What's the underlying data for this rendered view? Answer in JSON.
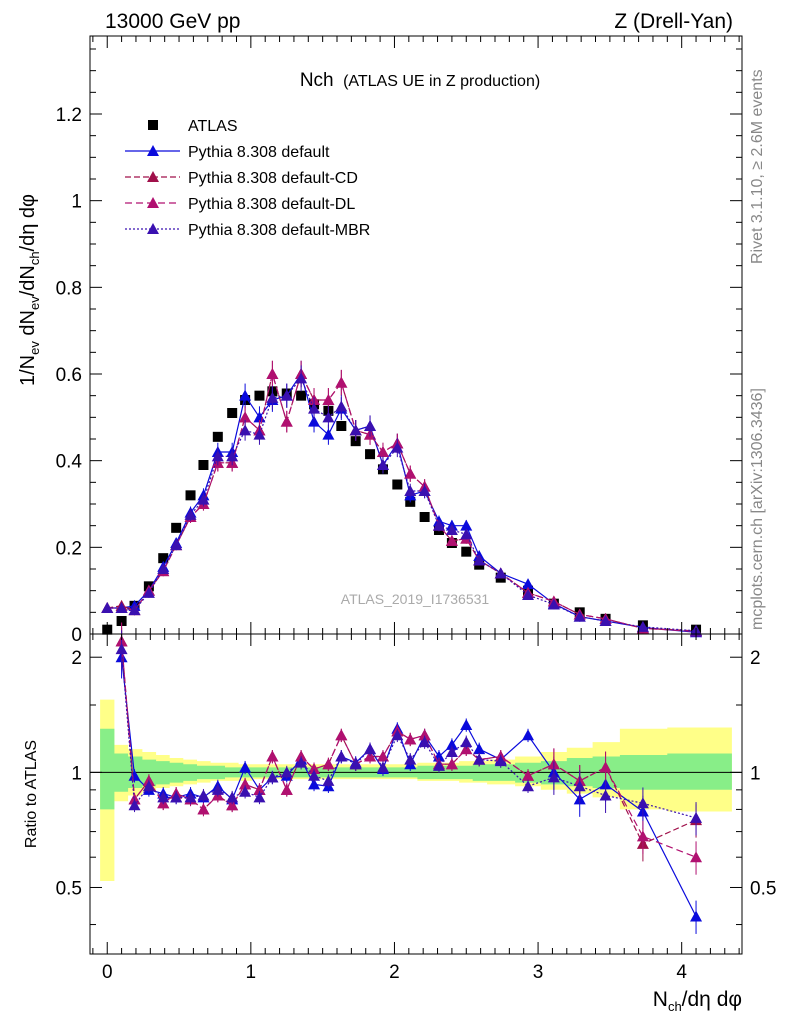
{
  "header": {
    "left": "13000 GeV pp",
    "right": "Z (Drell-Yan)"
  },
  "side_labels": {
    "rivet": "Rivet 3.1.10, ≥ 2.6M events",
    "mcplots": "mcplots.cern.ch [arXiv:1306.3436]"
  },
  "title": {
    "main": "Nch",
    "sub": "(ATLAS UE in Z production)"
  },
  "watermark": "ATLAS_2019_I1736531",
  "colors": {
    "atlas": "#000000",
    "default": "#0a0adc",
    "cd": "#a0104a",
    "dl": "#b01070",
    "mbr": "#3a10b0",
    "band_yellow": "#ffff88",
    "band_green": "#88ee88"
  },
  "chart_data": [
    {
      "type": "scatter",
      "panel": "main",
      "title": "Nch (ATLAS UE in Z production)",
      "xlabel": "N_ch/dη dφ",
      "ylabel": "1/N_ev dN_ev/dN_ch/dη dφ",
      "xlim": [
        -0.12,
        4.42
      ],
      "ylim": [
        0,
        1.38
      ],
      "xticks": [
        "0",
        "1",
        "2",
        "3",
        "4"
      ],
      "yticks": [
        "0",
        "0.2",
        "0.4",
        "0.6",
        "0.8",
        "1",
        "1.2"
      ],
      "legend": [
        "ATLAS",
        "Pythia 8.308 default",
        "Pythia 8.308 default-CD",
        "Pythia 8.308 default-DL",
        "Pythia 8.308 default-MBR"
      ],
      "x": [
        0.0,
        0.1,
        0.19,
        0.29,
        0.39,
        0.48,
        0.58,
        0.67,
        0.77,
        0.87,
        0.96,
        1.06,
        1.15,
        1.25,
        1.35,
        1.44,
        1.54,
        1.63,
        1.73,
        1.83,
        1.92,
        2.02,
        2.11,
        2.21,
        2.31,
        2.4,
        2.5,
        2.59,
        2.74,
        2.93,
        3.11,
        3.29,
        3.47,
        3.73,
        4.1
      ],
      "series": [
        {
          "name": "ATLAS",
          "values": [
            0.01,
            0.03,
            0.065,
            0.11,
            0.175,
            0.245,
            0.32,
            0.39,
            0.455,
            0.51,
            0.54,
            0.55,
            0.56,
            0.555,
            0.55,
            0.53,
            0.515,
            0.48,
            0.445,
            0.415,
            0.38,
            0.345,
            0.305,
            0.27,
            0.24,
            0.21,
            0.19,
            0.16,
            0.13,
            0.1,
            0.07,
            0.05,
            0.035,
            0.02,
            0.01
          ]
        },
        {
          "name": "Pythia 8.308 default",
          "values": [
            0.06,
            0.06,
            0.065,
            0.1,
            0.155,
            0.21,
            0.28,
            0.32,
            0.42,
            0.42,
            0.55,
            0.5,
            0.54,
            0.55,
            0.6,
            0.49,
            0.46,
            0.52,
            0.47,
            0.48,
            0.39,
            0.44,
            0.32,
            0.33,
            0.26,
            0.25,
            0.25,
            0.18,
            0.14,
            0.115,
            0.07,
            0.04,
            0.03,
            0.015,
            0.004
          ]
        },
        {
          "name": "Pythia 8.308 default-CD",
          "values": [
            0.06,
            0.065,
            0.055,
            0.1,
            0.145,
            0.205,
            0.27,
            0.3,
            0.395,
            0.395,
            0.5,
            0.47,
            0.6,
            0.49,
            0.6,
            0.54,
            0.54,
            0.58,
            0.47,
            0.46,
            0.42,
            0.44,
            0.37,
            0.34,
            0.25,
            0.215,
            0.22,
            0.17,
            0.14,
            0.095,
            0.075,
            0.045,
            0.035,
            0.013,
            0.0075
          ]
        },
        {
          "name": "Pythia 8.308 default-DL",
          "values": [
            0.06,
            0.06,
            0.055,
            0.1,
            0.145,
            0.205,
            0.27,
            0.3,
            0.395,
            0.395,
            0.5,
            0.47,
            0.6,
            0.49,
            0.6,
            0.54,
            0.54,
            0.58,
            0.47,
            0.46,
            0.42,
            0.44,
            0.37,
            0.34,
            0.25,
            0.215,
            0.22,
            0.17,
            0.14,
            0.095,
            0.075,
            0.045,
            0.035,
            0.013,
            0.006
          ]
        },
        {
          "name": "Pythia 8.308 default-MBR",
          "values": [
            0.06,
            0.06,
            0.055,
            0.095,
            0.15,
            0.205,
            0.275,
            0.31,
            0.41,
            0.41,
            0.47,
            0.46,
            0.545,
            0.55,
            0.59,
            0.52,
            0.5,
            0.525,
            0.47,
            0.48,
            0.39,
            0.43,
            0.33,
            0.33,
            0.25,
            0.24,
            0.23,
            0.17,
            0.14,
            0.09,
            0.068,
            0.04,
            0.03,
            0.0165,
            0.0075
          ]
        }
      ]
    },
    {
      "type": "line",
      "panel": "ratio",
      "ylabel": "Ratio to ATLAS",
      "xlim": [
        -0.12,
        4.42
      ],
      "ylim": [
        0.335,
        2.3
      ],
      "yscale": "log",
      "yticks": [
        "0.5",
        "1",
        "2"
      ],
      "x": [
        0.0,
        0.1,
        0.19,
        0.29,
        0.39,
        0.48,
        0.58,
        0.67,
        0.77,
        0.87,
        0.96,
        1.06,
        1.15,
        1.25,
        1.35,
        1.44,
        1.54,
        1.63,
        1.73,
        1.83,
        1.92,
        2.02,
        2.11,
        2.21,
        2.31,
        2.4,
        2.5,
        2.59,
        2.74,
        2.93,
        3.11,
        3.29,
        3.47,
        3.73,
        4.1
      ],
      "series": [
        {
          "name": "Pythia 8.308 default",
          "values": [
            null,
            2.0,
            0.98,
            0.9,
            0.88,
            0.86,
            0.88,
            0.86,
            0.92,
            0.85,
            1.03,
            0.9,
            0.97,
            0.98,
            1.08,
            0.93,
            0.92,
            1.1,
            1.06,
            1.15,
            1.02,
            1.3,
            1.05,
            1.25,
            1.1,
            1.18,
            1.33,
            1.15,
            1.08,
            1.25,
            1.0,
            0.85,
            0.93,
            0.79,
            0.42
          ]
        },
        {
          "name": "Pythia 8.308 default-CD",
          "values": [
            null,
            2.2,
            0.85,
            0.95,
            0.83,
            0.88,
            0.85,
            0.8,
            0.87,
            0.82,
            0.93,
            0.9,
            1.1,
            0.9,
            1.1,
            1.02,
            1.05,
            1.25,
            1.05,
            1.1,
            1.1,
            1.28,
            1.22,
            1.25,
            1.05,
            1.05,
            1.15,
            1.08,
            1.1,
            0.98,
            1.05,
            0.95,
            1.03,
            0.65,
            0.75
          ]
        },
        {
          "name": "Pythia 8.308 default-DL",
          "values": [
            null,
            2.2,
            0.85,
            0.95,
            0.83,
            0.88,
            0.85,
            0.8,
            0.87,
            0.82,
            0.93,
            0.9,
            1.1,
            0.9,
            1.1,
            1.02,
            1.05,
            1.25,
            1.05,
            1.1,
            1.1,
            1.28,
            1.22,
            1.25,
            1.05,
            1.05,
            1.15,
            1.08,
            1.1,
            0.98,
            1.05,
            0.95,
            1.03,
            0.68,
            0.6
          ]
        },
        {
          "name": "Pythia 8.308 default-MBR",
          "values": [
            null,
            2.1,
            0.82,
            0.92,
            0.86,
            0.86,
            0.86,
            0.87,
            0.9,
            0.86,
            0.89,
            0.86,
            0.97,
            1.0,
            1.06,
            0.98,
            0.95,
            1.1,
            1.05,
            1.15,
            1.03,
            1.25,
            1.08,
            1.2,
            1.04,
            1.13,
            1.2,
            1.08,
            1.07,
            0.92,
            0.97,
            0.92,
            0.87,
            0.83,
            0.76
          ]
        }
      ],
      "bands": {
        "x_edges": [
          -0.05,
          0.05,
          0.145,
          0.245,
          0.34,
          0.435,
          0.53,
          0.625,
          0.72,
          0.82,
          0.915,
          1.01,
          1.105,
          1.2,
          1.3,
          1.395,
          1.49,
          1.585,
          1.68,
          1.78,
          1.875,
          1.97,
          2.065,
          2.16,
          2.26,
          2.355,
          2.45,
          2.545,
          2.645,
          2.84,
          3.02,
          3.2,
          3.38,
          3.57,
          3.9,
          4.35
        ],
        "yellow_lo": [
          0.52,
          0.84,
          0.87,
          0.89,
          0.91,
          0.92,
          0.93,
          0.94,
          0.95,
          0.95,
          0.95,
          0.96,
          0.96,
          0.96,
          0.96,
          0.96,
          0.96,
          0.96,
          0.96,
          0.96,
          0.96,
          0.96,
          0.96,
          0.95,
          0.95,
          0.95,
          0.94,
          0.94,
          0.93,
          0.92,
          0.9,
          0.88,
          0.86,
          0.8,
          0.79
        ],
        "yellow_hi": [
          1.55,
          1.18,
          1.15,
          1.13,
          1.11,
          1.09,
          1.08,
          1.07,
          1.06,
          1.06,
          1.05,
          1.05,
          1.05,
          1.05,
          1.05,
          1.05,
          1.05,
          1.05,
          1.05,
          1.05,
          1.05,
          1.05,
          1.05,
          1.06,
          1.06,
          1.06,
          1.07,
          1.07,
          1.08,
          1.1,
          1.13,
          1.16,
          1.2,
          1.3,
          1.31
        ],
        "green_lo": [
          0.8,
          0.89,
          0.91,
          0.92,
          0.93,
          0.94,
          0.95,
          0.96,
          0.96,
          0.97,
          0.97,
          0.97,
          0.97,
          0.97,
          0.97,
          0.97,
          0.97,
          0.97,
          0.97,
          0.97,
          0.97,
          0.97,
          0.97,
          0.96,
          0.96,
          0.96,
          0.96,
          0.95,
          0.95,
          0.94,
          0.93,
          0.92,
          0.91,
          0.9,
          0.9
        ],
        "green_hi": [
          1.3,
          1.12,
          1.1,
          1.08,
          1.07,
          1.06,
          1.05,
          1.04,
          1.04,
          1.03,
          1.03,
          1.03,
          1.03,
          1.03,
          1.03,
          1.03,
          1.03,
          1.03,
          1.03,
          1.03,
          1.03,
          1.03,
          1.03,
          1.04,
          1.04,
          1.04,
          1.04,
          1.05,
          1.05,
          1.06,
          1.07,
          1.09,
          1.1,
          1.11,
          1.12
        ]
      }
    }
  ]
}
